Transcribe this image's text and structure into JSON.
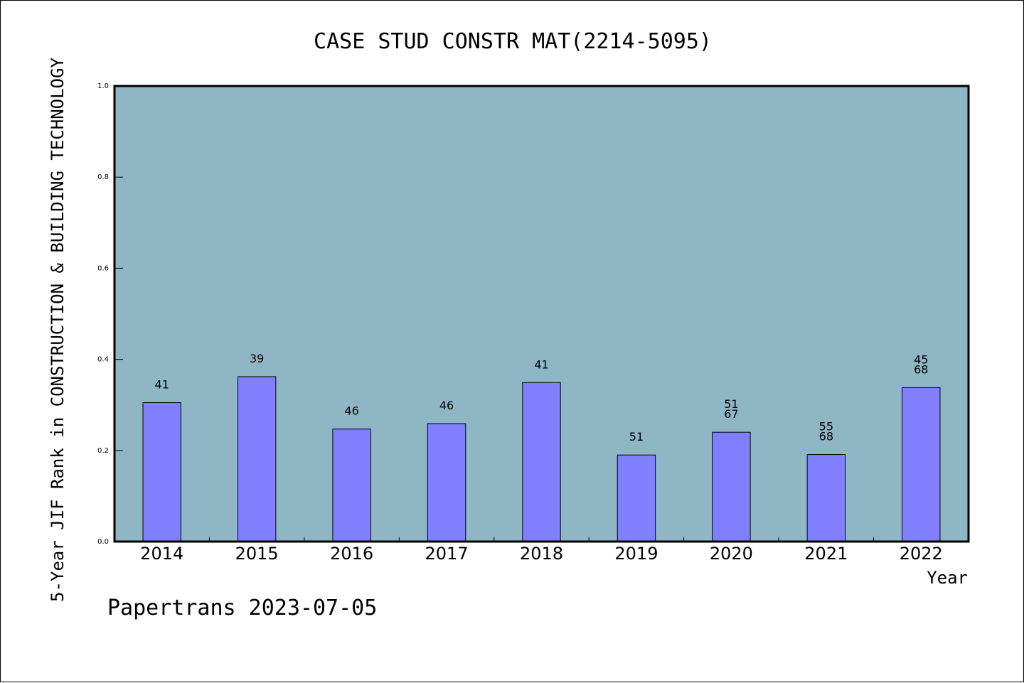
{
  "chart_data": {
    "type": "bar",
    "title": "CASE STUD CONSTR MAT(2214-5095)",
    "xlabel": "Year",
    "ylabel": "5-Year JIF Rank in CONSTRUCTION & BUILDING TECHNOLOGY",
    "categories": [
      "2014",
      "2015",
      "2016",
      "2017",
      "2018",
      "2019",
      "2020",
      "2021",
      "2022"
    ],
    "values": [
      0.305,
      0.362,
      0.247,
      0.259,
      0.349,
      0.19,
      0.24,
      0.191,
      0.338
    ],
    "data_labels": [
      [
        "41"
      ],
      [
        "39"
      ],
      [
        "46"
      ],
      [
        "46"
      ],
      [
        "41"
      ],
      [
        "51"
      ],
      [
        "51",
        "67"
      ],
      [
        "55",
        "68"
      ],
      [
        "45",
        "68"
      ]
    ],
    "ylim": [
      0,
      1.0
    ],
    "yticks": [
      "0.0",
      "0.2",
      "0.4",
      "0.6",
      "0.8",
      "1.0"
    ],
    "grid": false,
    "colors": {
      "plot_background": "#8fb6c4",
      "bar_fill": "#8080ff",
      "bar_edge": "#000000"
    }
  },
  "footer": "Papertrans 2023-07-05"
}
